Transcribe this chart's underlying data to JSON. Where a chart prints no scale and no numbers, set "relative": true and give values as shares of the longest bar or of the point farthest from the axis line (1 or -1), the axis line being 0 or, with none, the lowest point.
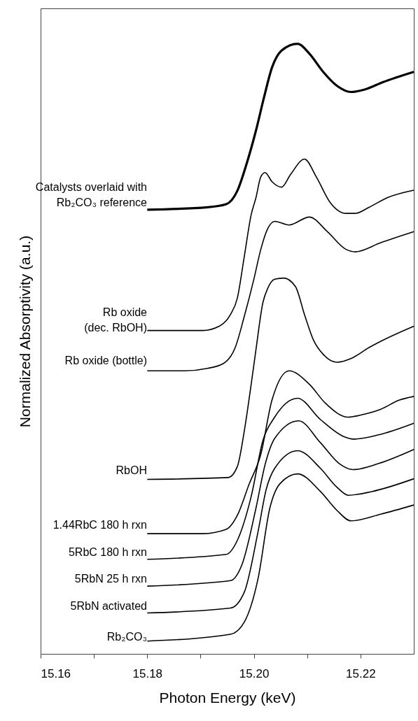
{
  "chart_data": {
    "type": "line",
    "relative": true,
    "xlabel": "Photon Energy (keV)",
    "ylabel": "Normalized Absorptivity (a.u.)",
    "xlim": [
      15.16,
      15.23
    ],
    "xticks": [
      {
        "value": 15.16,
        "label": "15.16"
      },
      {
        "value": 15.17,
        "label": null
      },
      {
        "value": 15.18,
        "label": "15.18"
      },
      {
        "value": 15.19,
        "label": null
      },
      {
        "value": 15.2,
        "label": "15.20"
      },
      {
        "value": 15.21,
        "label": null
      },
      {
        "value": 15.22,
        "label": "15.22"
      }
    ],
    "grid": false,
    "marker": "none",
    "line_style": "solid",
    "series": [
      {
        "name": "Catalysts overlaid with\nRb₂CO₃ reference",
        "color": "#000000",
        "x": [
          15.18,
          15.1913,
          15.1948,
          15.1969,
          15.1987,
          15.2004,
          15.2019,
          15.2034,
          15.2052,
          15.2082,
          15.2104,
          15.213,
          15.2156,
          15.2182,
          15.2208,
          15.2242,
          15.23
        ],
        "values": [
          0.728,
          0.732,
          0.737,
          0.759,
          0.805,
          0.858,
          0.912,
          0.961,
          0.989,
          1.0,
          0.984,
          0.954,
          0.931,
          0.921,
          0.925,
          0.937,
          0.954
        ]
      },
      {
        "name": "Rb oxide\n(dec. RbOH)",
        "color": "#000000",
        "x": [
          15.18,
          15.1904,
          15.1935,
          15.1956,
          15.1969,
          15.1982,
          15.1995,
          15.2004,
          15.2013,
          15.2021,
          15.2034,
          15.2052,
          15.2069,
          15.2095,
          15.2117,
          15.2143,
          15.2173,
          15.219,
          15.2216,
          15.2251,
          15.23
        ],
        "values": [
          0.53,
          0.53,
          0.537,
          0.556,
          0.583,
          0.651,
          0.72,
          0.748,
          0.782,
          0.789,
          0.774,
          0.765,
          0.786,
          0.811,
          0.782,
          0.74,
          0.722,
          0.722,
          0.732,
          0.748,
          0.76
        ]
      },
      {
        "name": "Rb oxide (bottle)",
        "color": "#000000",
        "x": [
          15.18,
          15.187,
          15.1913,
          15.1943,
          15.1965,
          15.1982,
          15.2,
          15.2013,
          15.2026,
          15.2039,
          15.2066,
          15.2104,
          15.2138,
          15.2173,
          15.219,
          15.2238,
          15.23
        ],
        "values": [
          0.464,
          0.464,
          0.468,
          0.476,
          0.502,
          0.553,
          0.614,
          0.663,
          0.697,
          0.709,
          0.703,
          0.716,
          0.692,
          0.663,
          0.659,
          0.674,
          0.692
        ]
      },
      {
        "name": "RbOH",
        "color": "#000000",
        "x": [
          15.18,
          15.1952,
          15.1969,
          15.1982,
          15.1995,
          15.2004,
          15.2017,
          15.2026,
          15.2039,
          15.2056,
          15.2078,
          15.2095,
          15.2112,
          15.213,
          15.2156,
          15.2182,
          15.2216,
          15.2242,
          15.23
        ],
        "values": [
          0.286,
          0.289,
          0.307,
          0.365,
          0.442,
          0.499,
          0.576,
          0.599,
          0.614,
          0.616,
          0.602,
          0.556,
          0.514,
          0.491,
          0.478,
          0.484,
          0.502,
          0.514,
          0.537
        ]
      },
      {
        "name": "1.44RbC 180 h rxn",
        "color": "#000000",
        "x": [
          15.18,
          15.1904,
          15.1948,
          15.1969,
          15.1991,
          15.2013,
          15.2034,
          15.2066,
          15.2104,
          15.2134,
          15.2177,
          15.2203,
          15.2238,
          15.2273,
          15.23
        ],
        "values": [
          0.197,
          0.197,
          0.204,
          0.227,
          0.278,
          0.327,
          0.416,
          0.464,
          0.442,
          0.411,
          0.388,
          0.392,
          0.401,
          0.416,
          0.422
        ]
      },
      {
        "name": "5RbC 180 h rxn",
        "color": "#000000",
        "x": [
          15.18,
          15.1948,
          15.1969,
          15.1995,
          15.2017,
          15.2039,
          15.2082,
          15.2125,
          15.2169,
          15.2186,
          15.2234,
          15.23
        ],
        "values": [
          0.155,
          0.163,
          0.186,
          0.258,
          0.35,
          0.388,
          0.419,
          0.384,
          0.356,
          0.352,
          0.359,
          0.378
        ]
      },
      {
        "name": "5RbN 25 h rxn",
        "color": "#000000",
        "x": [
          15.18,
          15.1956,
          15.1978,
          15.2004,
          15.2021,
          15.2039,
          15.2084,
          15.2125,
          15.216,
          15.2186,
          15.2234,
          15.23
        ],
        "values": [
          0.111,
          0.12,
          0.147,
          0.239,
          0.31,
          0.353,
          0.382,
          0.346,
          0.312,
          0.302,
          0.312,
          0.335
        ]
      },
      {
        "name": "5RbN activated",
        "color": "#000000",
        "x": [
          15.18,
          15.1956,
          15.1982,
          15.2008,
          15.2023,
          15.2039,
          15.2082,
          15.2125,
          15.2156,
          15.2177,
          15.2221,
          15.23
        ],
        "values": [
          0.067,
          0.075,
          0.101,
          0.201,
          0.269,
          0.304,
          0.333,
          0.304,
          0.273,
          0.26,
          0.266,
          0.287
        ]
      },
      {
        "name": "Rb₂CO₃",
        "color": "#000000",
        "x": [
          15.18,
          15.1956,
          15.1982,
          15.2008,
          15.203,
          15.2049,
          15.2082,
          15.2125,
          15.2156,
          15.2182,
          15.2238,
          15.23
        ],
        "values": [
          0.021,
          0.032,
          0.052,
          0.124,
          0.239,
          0.279,
          0.295,
          0.266,
          0.235,
          0.218,
          0.229,
          0.244
        ]
      }
    ]
  }
}
